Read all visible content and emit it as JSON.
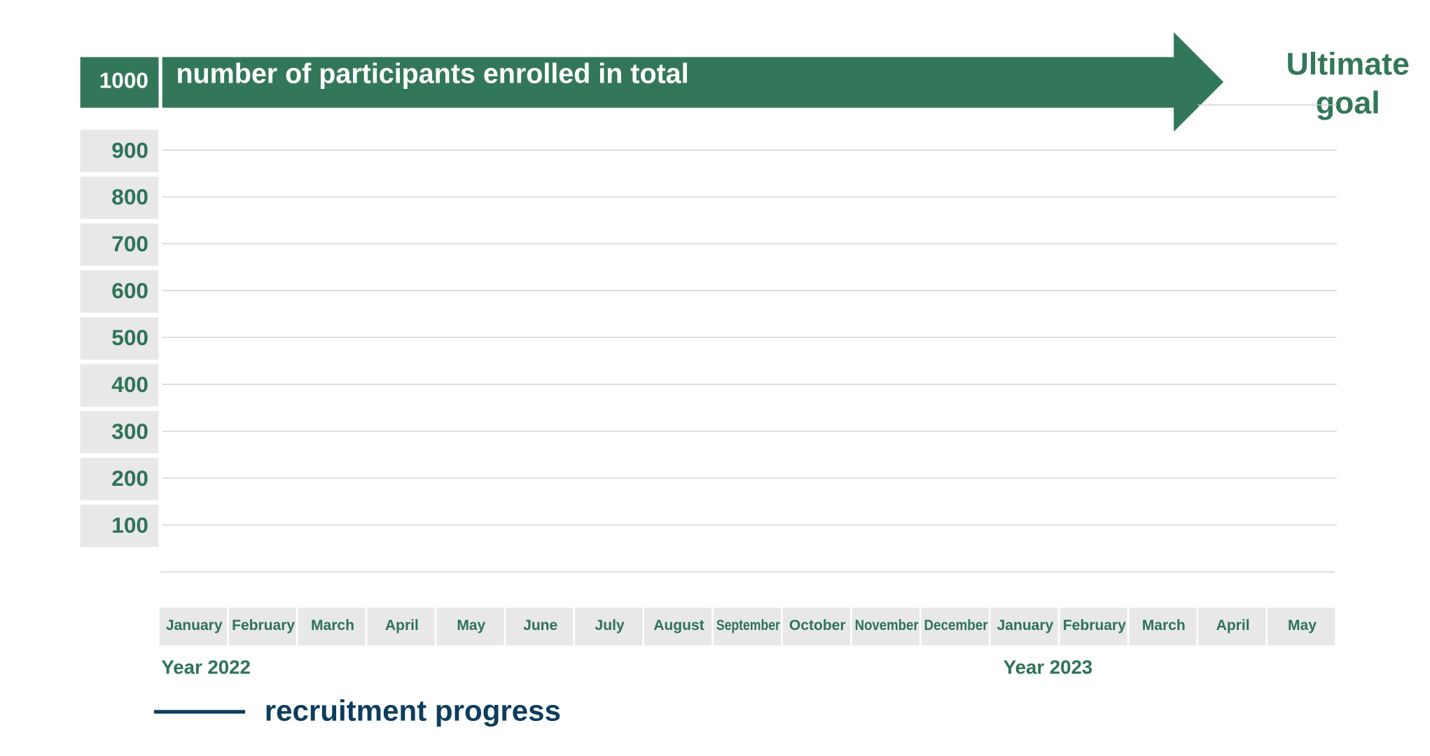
{
  "chart_data": {
    "type": "line",
    "title": "number of participants enrolled in total",
    "annotations": [
      "Ultimate goal",
      "Year 2022",
      "Year 2023"
    ],
    "categories": [
      "January",
      "February",
      "March",
      "April",
      "May",
      "June",
      "July",
      "August",
      "September",
      "October",
      "November",
      "December",
      "January",
      "February",
      "March",
      "April",
      "May"
    ],
    "series": [
      {
        "name": "recruitment progress",
        "color": "#0d3d5c",
        "values": [
          null,
          null,
          null,
          null,
          null,
          null,
          null,
          null,
          null,
          null,
          null,
          null,
          null,
          null,
          null,
          null,
          null
        ]
      }
    ],
    "ylim": [
      0,
      1000
    ],
    "yticks": [
      100,
      200,
      300,
      400,
      500,
      600,
      700,
      800,
      900,
      1000
    ],
    "grid": true,
    "legend": "bottom-left",
    "color": "#33775a"
  }
}
